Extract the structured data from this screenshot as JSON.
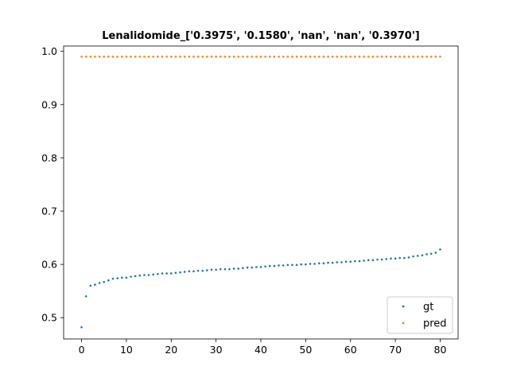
{
  "chart_data": {
    "type": "scatter",
    "title": "Lenalidomide_['0.3975', '0.1580', 'nan', 'nan', '0.3970']",
    "xlabel": "",
    "ylabel": "",
    "xlim": [
      -4,
      84
    ],
    "ylim": [
      0.46,
      1.01
    ],
    "xticks": [
      0,
      10,
      20,
      30,
      40,
      50,
      60,
      70,
      80
    ],
    "yticks": [
      0.5,
      0.6,
      0.7,
      0.8,
      0.9,
      1.0
    ],
    "xtick_labels": [
      "0",
      "10",
      "20",
      "30",
      "40",
      "50",
      "60",
      "70",
      "80"
    ],
    "ytick_labels": [
      "0.5",
      "0.6",
      "0.7",
      "0.8",
      "0.9",
      "1.0"
    ],
    "grid": false,
    "legend_position": "lower right",
    "series": [
      {
        "name": "gt",
        "color": "#1f77b4",
        "x": [
          0,
          1,
          2,
          3,
          4,
          5,
          6,
          7,
          8,
          9,
          10,
          11,
          12,
          13,
          14,
          15,
          16,
          17,
          18,
          19,
          20,
          21,
          22,
          23,
          24,
          25,
          26,
          27,
          28,
          29,
          30,
          31,
          32,
          33,
          34,
          35,
          36,
          37,
          38,
          39,
          40,
          41,
          42,
          43,
          44,
          45,
          46,
          47,
          48,
          49,
          50,
          51,
          52,
          53,
          54,
          55,
          56,
          57,
          58,
          59,
          60,
          61,
          62,
          63,
          64,
          65,
          66,
          67,
          68,
          69,
          70,
          71,
          72,
          73,
          74,
          75,
          76,
          77,
          78,
          79,
          80
        ],
        "y": [
          0.482,
          0.54,
          0.56,
          0.562,
          0.565,
          0.567,
          0.57,
          0.573,
          0.574,
          0.575,
          0.575,
          0.577,
          0.578,
          0.579,
          0.58,
          0.58,
          0.581,
          0.582,
          0.583,
          0.583,
          0.583,
          0.584,
          0.585,
          0.586,
          0.587,
          0.587,
          0.588,
          0.588,
          0.589,
          0.59,
          0.59,
          0.591,
          0.591,
          0.591,
          0.592,
          0.592,
          0.593,
          0.594,
          0.594,
          0.595,
          0.595,
          0.596,
          0.597,
          0.597,
          0.598,
          0.598,
          0.599,
          0.599,
          0.599,
          0.6,
          0.6,
          0.601,
          0.601,
          0.602,
          0.602,
          0.603,
          0.603,
          0.604,
          0.604,
          0.605,
          0.605,
          0.606,
          0.606,
          0.607,
          0.608,
          0.608,
          0.609,
          0.609,
          0.61,
          0.611,
          0.611,
          0.612,
          0.612,
          0.613,
          0.615,
          0.616,
          0.617,
          0.619,
          0.62,
          0.622,
          0.628
        ]
      },
      {
        "name": "pred",
        "color": "#ff7f0e",
        "x": [
          0,
          1,
          2,
          3,
          4,
          5,
          6,
          7,
          8,
          9,
          10,
          11,
          12,
          13,
          14,
          15,
          16,
          17,
          18,
          19,
          20,
          21,
          22,
          23,
          24,
          25,
          26,
          27,
          28,
          29,
          30,
          31,
          32,
          33,
          34,
          35,
          36,
          37,
          38,
          39,
          40,
          41,
          42,
          43,
          44,
          45,
          46,
          47,
          48,
          49,
          50,
          51,
          52,
          53,
          54,
          55,
          56,
          57,
          58,
          59,
          60,
          61,
          62,
          63,
          64,
          65,
          66,
          67,
          68,
          69,
          70,
          71,
          72,
          73,
          74,
          75,
          76,
          77,
          78,
          79,
          80
        ],
        "y": [
          0.99,
          0.99,
          0.99,
          0.99,
          0.99,
          0.99,
          0.99,
          0.99,
          0.99,
          0.99,
          0.99,
          0.99,
          0.99,
          0.99,
          0.99,
          0.99,
          0.99,
          0.99,
          0.99,
          0.99,
          0.99,
          0.99,
          0.99,
          0.99,
          0.99,
          0.99,
          0.99,
          0.99,
          0.99,
          0.99,
          0.99,
          0.99,
          0.99,
          0.99,
          0.99,
          0.99,
          0.99,
          0.99,
          0.99,
          0.99,
          0.99,
          0.99,
          0.99,
          0.99,
          0.99,
          0.99,
          0.99,
          0.99,
          0.99,
          0.99,
          0.99,
          0.99,
          0.99,
          0.99,
          0.99,
          0.99,
          0.99,
          0.99,
          0.99,
          0.99,
          0.99,
          0.99,
          0.99,
          0.99,
          0.99,
          0.99,
          0.99,
          0.99,
          0.99,
          0.99,
          0.99,
          0.99,
          0.99,
          0.99,
          0.99,
          0.99,
          0.99,
          0.99,
          0.99,
          0.99,
          0.99
        ]
      }
    ]
  }
}
